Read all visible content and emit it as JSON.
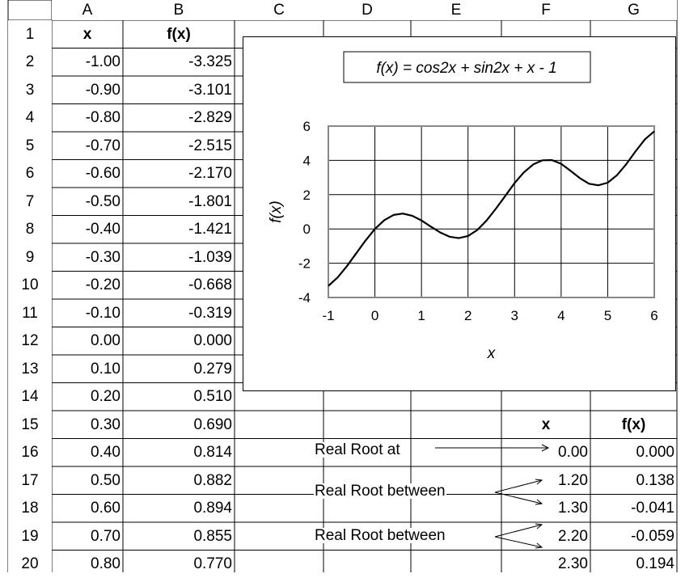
{
  "sheet": {
    "columns": [
      "A",
      "B",
      "C",
      "D",
      "E",
      "F",
      "G"
    ],
    "rows": [
      "1",
      "2",
      "3",
      "4",
      "5",
      "6",
      "7",
      "8",
      "9",
      "10",
      "11",
      "12",
      "13",
      "14",
      "15",
      "16",
      "17",
      "18",
      "19",
      "20"
    ],
    "header_x": "x",
    "header_fx": "f(x)",
    "x_values": [
      "-1.00",
      "-0.90",
      "-0.80",
      "-0.70",
      "-0.60",
      "-0.50",
      "-0.40",
      "-0.30",
      "-0.20",
      "-0.10",
      "0.00",
      "0.10",
      "0.20",
      "0.30",
      "0.40",
      "0.50",
      "0.60",
      "0.70",
      "0.80"
    ],
    "fx_values": [
      "-3.325",
      "-3.101",
      "-2.829",
      "-2.515",
      "-2.170",
      "-1.801",
      "-1.421",
      "-1.039",
      "-0.668",
      "-0.319",
      "0.000",
      "0.279",
      "0.510",
      "0.690",
      "0.814",
      "0.882",
      "0.894",
      "0.855",
      "0.770"
    ]
  },
  "roots": {
    "header_x": "x",
    "header_fx": "f(x)",
    "label_at": "Real Root at",
    "label_between": "Real Root between",
    "entries": [
      {
        "x": "0.00",
        "fx": "0.000"
      },
      {
        "x": "1.20",
        "fx": "0.138"
      },
      {
        "x": "1.30",
        "fx": "-0.041"
      },
      {
        "x": "2.20",
        "fx": "-0.059"
      },
      {
        "x": "2.30",
        "fx": "0.194"
      }
    ]
  },
  "chart_data": {
    "type": "line",
    "title": "f(x) = cos2x + sin2x + x - 1",
    "xlabel": "x",
    "ylabel": "f(x)",
    "xlim": [
      -1,
      6
    ],
    "ylim": [
      -4,
      6
    ],
    "xticks": [
      -1,
      0,
      1,
      2,
      3,
      4,
      5,
      6
    ],
    "yticks": [
      -4,
      -2,
      0,
      2,
      4,
      6
    ],
    "grid": true,
    "legend": "none",
    "series": [
      {
        "x": [
          -1.0,
          -0.8,
          -0.6,
          -0.4,
          -0.2,
          0.0,
          0.2,
          0.4,
          0.6,
          0.8,
          1.0,
          1.2,
          1.4,
          1.6,
          1.8,
          2.0,
          2.2,
          2.4,
          2.6,
          2.8,
          3.0,
          3.2,
          3.4,
          3.6,
          3.8,
          4.0,
          4.2,
          4.4,
          4.6,
          4.8,
          5.0,
          5.2,
          5.4,
          5.6,
          5.8,
          6.0
        ],
        "y": [
          -3.325,
          -2.829,
          -2.17,
          -1.421,
          -0.668,
          0.0,
          0.51,
          0.814,
          0.894,
          0.77,
          0.493,
          0.138,
          -0.205,
          -0.453,
          -0.537,
          -0.41,
          -0.059,
          0.494,
          1.187,
          1.929,
          2.681,
          3.304,
          3.762,
          4.006,
          4.017,
          3.801,
          3.395,
          2.966,
          2.638,
          2.548,
          2.7,
          3.138,
          3.788,
          4.539,
          5.231,
          5.7
        ]
      }
    ]
  }
}
